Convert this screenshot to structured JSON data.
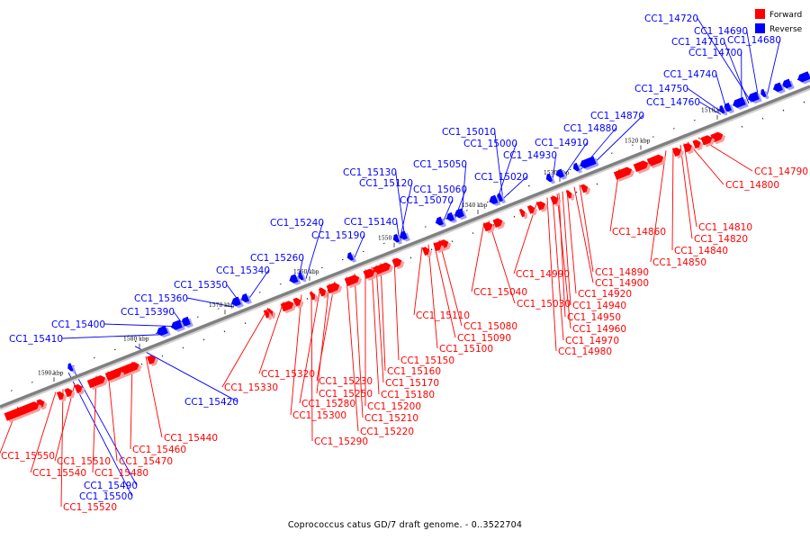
{
  "caption": "Coprococcus catus GD/7 draft genome. - 0..3522704",
  "legend": [
    {
      "label": "Forward",
      "color": "#ff0000"
    },
    {
      "label": "Reverse",
      "color": "#0000ff"
    }
  ],
  "colors": {
    "forward": "#ff0000",
    "reverse": "#0000ff",
    "backbone": "#808080"
  },
  "ticks": [
    "1510 kbp",
    "1520 kbp",
    "1530 kbp",
    "1540 kbp",
    "1550 kbp",
    "1560 kbp",
    "1570 kbp",
    "1580 kbp",
    "1590 kbp"
  ],
  "reverse_labels": [
    "CC1_14720",
    "CC1_14690",
    "CC1_14710",
    "CC1_14680",
    "CC1_14700",
    "CC1_14740",
    "CC1_14750",
    "CC1_14760",
    "CC1_14870",
    "CC1_14880",
    "CC1_14910",
    "CC1_14930",
    "CC1_15010",
    "CC1_15000",
    "CC1_15050",
    "CC1_15020",
    "CC1_15130",
    "CC1_15120",
    "CC1_15060",
    "CC1_15070",
    "CC1_15240",
    "CC1_15140",
    "CC1_15190",
    "CC1_15260",
    "CC1_15340",
    "CC1_15350",
    "CC1_15360",
    "CC1_15390",
    "CC1_15400",
    "CC1_15410",
    "CC1_15420",
    "CC1_15490",
    "CC1_15500"
  ],
  "forward_labels": [
    "CC1_14790",
    "CC1_14800",
    "CC1_14810",
    "CC1_14820",
    "CC1_14840",
    "CC1_14850",
    "CC1_14860",
    "CC1_14890",
    "CC1_14900",
    "CC1_14920",
    "CC1_14940",
    "CC1_14950",
    "CC1_14960",
    "CC1_14970",
    "CC1_14980",
    "CC1_14990",
    "CC1_15030",
    "CC1_15040",
    "CC1_15080",
    "CC1_15090",
    "CC1_15100",
    "CC1_15110",
    "CC1_15150",
    "CC1_15160",
    "CC1_15170",
    "CC1_15180",
    "CC1_15200",
    "CC1_15210",
    "CC1_15220",
    "CC1_15230",
    "CC1_15250",
    "CC1_15280",
    "CC1_15290",
    "CC1_15300",
    "CC1_15320",
    "CC1_15330",
    "CC1_15440",
    "CC1_15460",
    "CC1_15470",
    "CC1_15480",
    "CC1_15510",
    "CC1_15520",
    "CC1_15540",
    "CC1_15550"
  ]
}
